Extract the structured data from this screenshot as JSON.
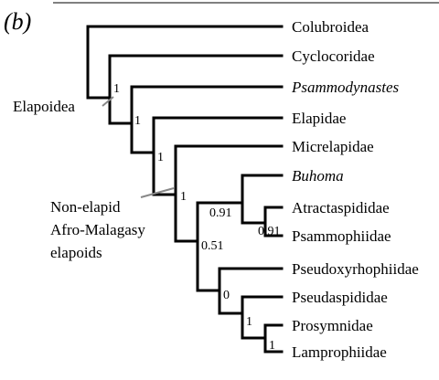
{
  "panel_label": "(b)",
  "taxa": [
    {
      "name": "Colubroidea",
      "italic": false
    },
    {
      "name": "Cyclocoridae",
      "italic": false
    },
    {
      "name": "Psammodynastes",
      "italic": true
    },
    {
      "name": "Elapidae",
      "italic": false
    },
    {
      "name": "Micrelapidae",
      "italic": false
    },
    {
      "name": "Buhoma",
      "italic": true
    },
    {
      "name": "Atractaspididae",
      "italic": false
    },
    {
      "name": "Psammophiidae",
      "italic": false
    },
    {
      "name": "Pseudoxyrhophiidae",
      "italic": false
    },
    {
      "name": "Pseudaspididae",
      "italic": false
    },
    {
      "name": "Prosymnidae",
      "italic": false
    },
    {
      "name": "Lamprophiidae",
      "italic": false
    }
  ],
  "supports": [
    "1",
    "1",
    "1",
    "1",
    "0.91",
    "0.91",
    "0.51",
    "0",
    "1",
    "1"
  ],
  "groups": {
    "elapoidea": "Elapoidea",
    "non_elapid": [
      "Non-elapid",
      "Afro-Malagasy",
      "elapoids"
    ]
  }
}
